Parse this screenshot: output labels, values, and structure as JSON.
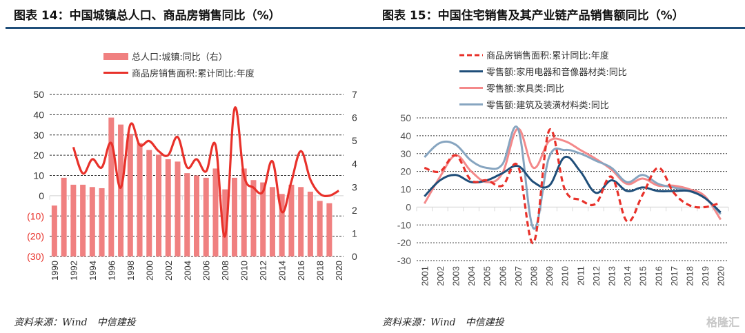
{
  "charts": [
    {
      "title": "图表 14：中国城镇总人口、商品房销售同比（%）",
      "source": "资料来源：Wind　中信建投",
      "legend": [
        "总人口:城镇:同比（右）",
        "商品房销售面积:累计同比:年度"
      ],
      "left_tick_labels": [
        "50",
        "40",
        "30",
        "20",
        "10",
        "0",
        "(10)",
        "(20)",
        "(30)"
      ],
      "right_tick_labels": [
        "7",
        "6",
        "5",
        "4",
        "3",
        "2",
        "1",
        "0"
      ],
      "x_tick_labels": [
        "1990",
        "1992",
        "1994",
        "1996",
        "1998",
        "2000",
        "2002",
        "2004",
        "2006",
        "2008",
        "2010",
        "2012",
        "2014",
        "2016",
        "2018",
        "2020"
      ]
    },
    {
      "title": "图表 15：中国住宅销售及其产业链产品销售额同比（%）",
      "source": "资料来源：Wind　中信建投",
      "legend": [
        "商品房销售面积:累计同比:年度",
        "零售额:家用电器和音像器材类:同比",
        "零售额:家具类:同比",
        "零售额:建筑及装潢材料类:同比"
      ],
      "y_tick_labels": [
        "50",
        "40",
        "30",
        "20",
        "10",
        "0",
        "-10",
        "-20",
        "-30"
      ],
      "x_tick_labels": [
        "2001",
        "2002",
        "2003",
        "2004",
        "2005",
        "2006",
        "2007",
        "2008",
        "2009",
        "2010",
        "2011",
        "2012",
        "2013",
        "2014",
        "2015",
        "2016",
        "2017",
        "2018",
        "2019",
        "2020"
      ]
    }
  ],
  "watermark": "格隆汇",
  "colors": {
    "bar": "#f08080",
    "red_line": "#e8312a",
    "navy": "#1f4e79",
    "pink": "#f4898a",
    "steel": "#87a5c0",
    "rule": "#1f4e79",
    "neg_label": "#e8312a"
  },
  "chart_data": [
    {
      "type": "bar",
      "title": "图表 14：中国城镇总人口、商品房销售同比（%）",
      "x": [
        1990,
        1991,
        1992,
        1993,
        1994,
        1995,
        1996,
        1997,
        1998,
        1999,
        2000,
        2001,
        2002,
        2003,
        2004,
        2005,
        2006,
        2007,
        2008,
        2009,
        2010,
        2011,
        2012,
        2013,
        2014,
        2015,
        2016,
        2017,
        2018,
        2019,
        2020
      ],
      "ylim_left": [
        -30,
        50
      ],
      "ylim_right": [
        0,
        7
      ],
      "grid": true,
      "legend_position": "top-center",
      "series": [
        {
          "name": "总人口:城镇:同比（右）",
          "type": "bar",
          "axis": "right",
          "values": [
            2.2,
            3.4,
            3.1,
            3.1,
            3.0,
            2.95,
            6.0,
            5.7,
            5.3,
            4.9,
            4.6,
            4.4,
            4.2,
            4.1,
            3.6,
            3.5,
            3.4,
            3.8,
            2.9,
            3.4,
            3.8,
            3.3,
            3.2,
            3.0,
            2.7,
            3.1,
            3.0,
            2.8,
            2.4,
            2.3,
            null
          ]
        },
        {
          "name": "商品房销售面积:累计同比:年度",
          "type": "line",
          "axis": "left",
          "values": [
            null,
            null,
            24,
            11,
            18,
            14,
            26,
            4,
            35,
            25,
            27,
            22,
            20,
            29,
            14,
            18,
            12,
            25,
            -20,
            43,
            10,
            4,
            2,
            17,
            -8,
            7,
            22,
            8,
            1,
            0,
            2.5
          ]
        }
      ]
    },
    {
      "type": "line",
      "title": "图表 15：中国住宅销售及其产业链产品销售额同比（%）",
      "x": [
        2001,
        2002,
        2003,
        2004,
        2005,
        2006,
        2007,
        2008,
        2009,
        2010,
        2011,
        2012,
        2013,
        2014,
        2015,
        2016,
        2017,
        2018,
        2019,
        2020
      ],
      "ylim": [
        -30,
        50
      ],
      "grid": true,
      "legend_position": "top-center",
      "series": [
        {
          "name": "商品房销售面积:累计同比:年度",
          "style": "dashed",
          "values": [
            22,
            20,
            29,
            15,
            15,
            12,
            23,
            -20,
            43,
            10,
            4,
            2,
            17,
            -8,
            7,
            22,
            8,
            1,
            0,
            2.5
          ]
        },
        {
          "name": "零售额:家用电器和音像器材类:同比",
          "style": "solid",
          "values": [
            6,
            15,
            18,
            14,
            15,
            19,
            23,
            14,
            12,
            28,
            20,
            8,
            15,
            9,
            11,
            9,
            9,
            9,
            5,
            -3
          ]
        },
        {
          "name": "零售额:家具类:同比",
          "style": "solid",
          "values": [
            2,
            17,
            29,
            20,
            14,
            19,
            44,
            22,
            37,
            37,
            32,
            27,
            21,
            13,
            16,
            12,
            12,
            10,
            6,
            -7
          ]
        },
        {
          "name": "零售额:建筑及装潢材料类:同比",
          "style": "solid",
          "values": [
            28,
            36,
            35,
            26,
            22,
            24,
            44,
            -12,
            28,
            32,
            30,
            26,
            22,
            14,
            18,
            13,
            11,
            9,
            5,
            -4
          ]
        }
      ]
    }
  ]
}
